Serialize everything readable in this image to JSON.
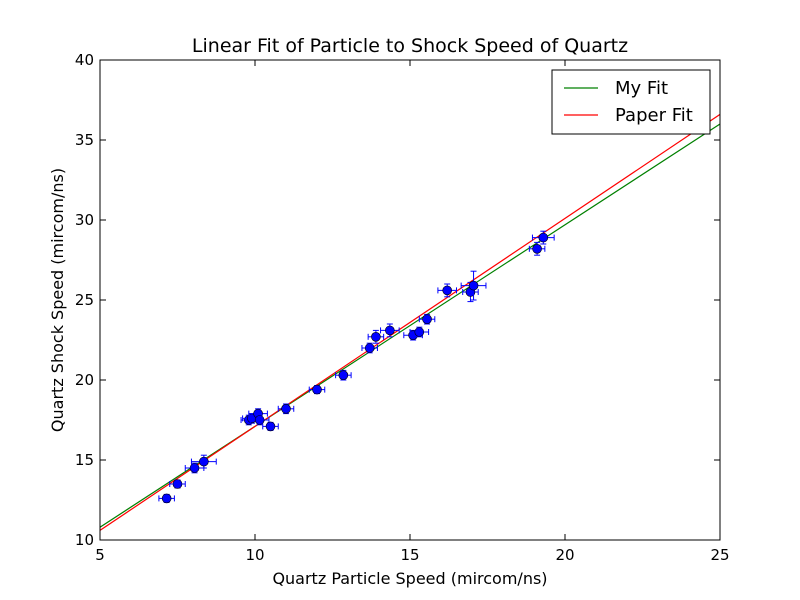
{
  "chart_data": {
    "type": "scatter",
    "title": "Linear Fit of Particle to Shock Speed of Quartz",
    "xlabel": "Quartz Particle Speed (mircom/ns)",
    "ylabel": "Quartz Shock Speed (mircom/ns)",
    "xlim": [
      5,
      25
    ],
    "ylim": [
      10,
      40
    ],
    "xticks": [
      5,
      10,
      15,
      20,
      25
    ],
    "yticks": [
      10,
      15,
      20,
      25,
      30,
      35,
      40
    ],
    "grid": false,
    "legend_position": "top-right",
    "points": {
      "color": "#0000ff",
      "errorbar_color": "#0000ff",
      "data": [
        {
          "x": 7.15,
          "y": 12.6,
          "xerr": 0.25,
          "yerr": 0.25
        },
        {
          "x": 7.5,
          "y": 13.5,
          "xerr": 0.25,
          "yerr": 0.25
        },
        {
          "x": 8.05,
          "y": 14.5,
          "xerr": 0.3,
          "yerr": 0.3
        },
        {
          "x": 8.35,
          "y": 14.9,
          "xerr": 0.4,
          "yerr": 0.4
        },
        {
          "x": 9.8,
          "y": 17.5,
          "xerr": 0.25,
          "yerr": 0.3
        },
        {
          "x": 9.9,
          "y": 17.6,
          "xerr": 0.3,
          "yerr": 0.3
        },
        {
          "x": 10.1,
          "y": 17.9,
          "xerr": 0.3,
          "yerr": 0.3
        },
        {
          "x": 10.15,
          "y": 17.5,
          "xerr": 0.3,
          "yerr": 0.3
        },
        {
          "x": 10.5,
          "y": 17.1,
          "xerr": 0.25,
          "yerr": 0.25
        },
        {
          "x": 11.0,
          "y": 18.2,
          "xerr": 0.25,
          "yerr": 0.3
        },
        {
          "x": 12.0,
          "y": 19.4,
          "xerr": 0.25,
          "yerr": 0.25
        },
        {
          "x": 12.85,
          "y": 20.3,
          "xerr": 0.25,
          "yerr": 0.3
        },
        {
          "x": 13.7,
          "y": 22.0,
          "xerr": 0.25,
          "yerr": 0.3
        },
        {
          "x": 13.9,
          "y": 22.7,
          "xerr": 0.25,
          "yerr": 0.4
        },
        {
          "x": 14.35,
          "y": 23.1,
          "xerr": 0.3,
          "yerr": 0.4
        },
        {
          "x": 15.1,
          "y": 22.8,
          "xerr": 0.3,
          "yerr": 0.3
        },
        {
          "x": 15.3,
          "y": 23.0,
          "xerr": 0.3,
          "yerr": 0.3
        },
        {
          "x": 15.55,
          "y": 23.8,
          "xerr": 0.25,
          "yerr": 0.3
        },
        {
          "x": 16.2,
          "y": 25.6,
          "xerr": 0.3,
          "yerr": 0.4
        },
        {
          "x": 16.95,
          "y": 25.5,
          "xerr": 0.25,
          "yerr": 0.6
        },
        {
          "x": 17.05,
          "y": 25.9,
          "xerr": 0.4,
          "yerr": 0.9
        },
        {
          "x": 19.1,
          "y": 28.2,
          "xerr": 0.25,
          "yerr": 0.4
        },
        {
          "x": 19.3,
          "y": 28.9,
          "xerr": 0.35,
          "yerr": 0.4
        }
      ]
    },
    "series": [
      {
        "name": "My Fit",
        "type": "line",
        "color": "#008000",
        "x": [
          5,
          25
        ],
        "y": [
          10.8,
          36.0
        ]
      },
      {
        "name": "Paper Fit",
        "type": "line",
        "color": "#ff0000",
        "x": [
          5,
          25
        ],
        "y": [
          10.6,
          36.6
        ]
      }
    ]
  }
}
